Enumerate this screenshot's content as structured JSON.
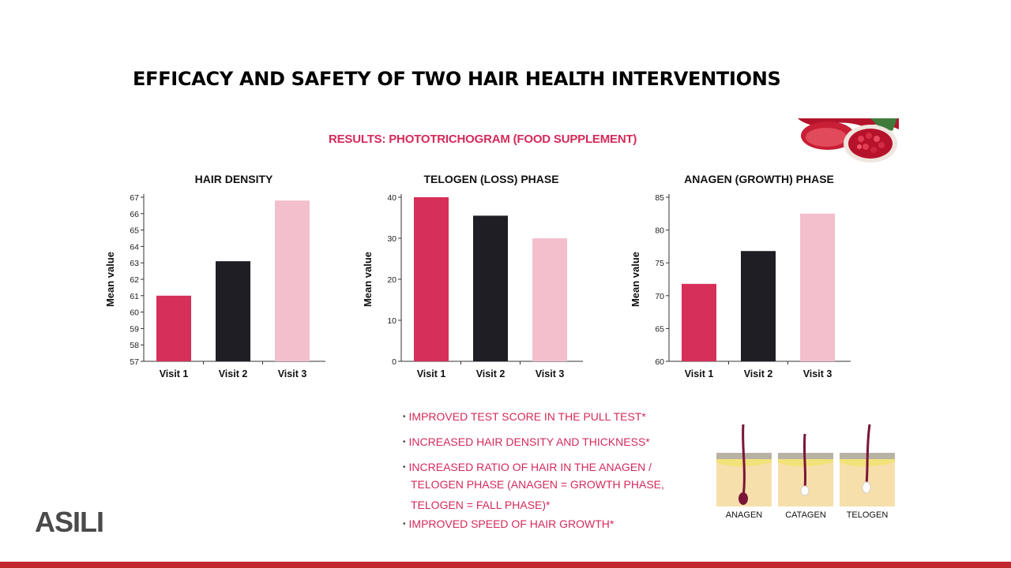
{
  "title": "EFFICACY AND SAFETY OF TWO HAIR HEALTH INTERVENTIONS",
  "subtitle": "RESULTS: PHOTOTRICHOGRAM (FOOD SUPPLEMENT)",
  "colors": {
    "visit1": "#d62f59",
    "visit2": "#1f1e24",
    "visit3": "#f3bfcd",
    "accent": "#d42a5a",
    "bar": "#c0282e"
  },
  "chart_data": [
    {
      "type": "bar",
      "title": "HAIR DENSITY",
      "ylabel": "Mean value",
      "categories": [
        "Visit 1",
        "Visit 2",
        "Visit 3"
      ],
      "values": [
        61.0,
        63.1,
        66.8
      ],
      "ylim": [
        57,
        67
      ],
      "yticks": [
        57,
        58,
        59,
        60,
        61,
        62,
        63,
        64,
        65,
        66,
        67
      ]
    },
    {
      "type": "bar",
      "title": "TELOGEN (LOSS) PHASE",
      "ylabel": "Mean value",
      "categories": [
        "Visit 1",
        "Visit 2",
        "Visit 3"
      ],
      "values": [
        40,
        35.5,
        30
      ],
      "ylim": [
        0,
        40
      ],
      "yticks": [
        0,
        10,
        20,
        30,
        40
      ]
    },
    {
      "type": "bar",
      "title": "ANAGEN (GROWTH) PHASE",
      "ylabel": "Mean value",
      "categories": [
        "Visit 1",
        "Visit 2",
        "Visit 3"
      ],
      "values": [
        71.8,
        76.8,
        82.5
      ],
      "ylim": [
        60,
        85
      ],
      "yticks": [
        60,
        65,
        70,
        75,
        80,
        85
      ]
    }
  ],
  "bullets": {
    "b1": "IMPROVED TEST SCORE IN THE PULL TEST*",
    "b2": "INCREASED HAIR DENSITY AND THICKNESS*",
    "b3_line1": "INCREASED RATIO OF HAIR IN THE ANAGEN /",
    "b3_line2": "TELOGEN PHASE (ANAGEN = GROWTH PHASE,",
    "b3_line3": "TELOGEN = FALL PHASE)*",
    "b4": "IMPROVED SPEED OF HAIR GROWTH*"
  },
  "hair_phases": [
    "ANAGEN",
    "CATAGEN",
    "TELOGEN"
  ],
  "logo_text": "ASILI"
}
